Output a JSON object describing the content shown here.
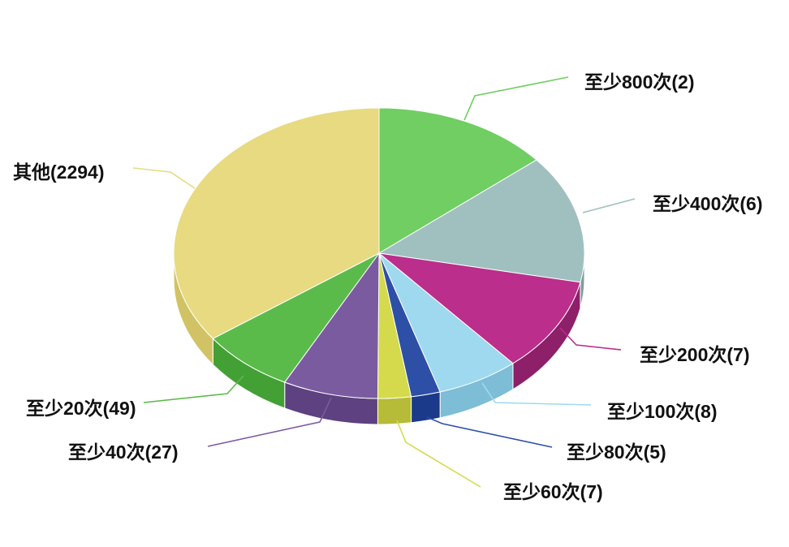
{
  "chart_data": {
    "type": "pie",
    "three_d": true,
    "title": "",
    "legend": "none",
    "slices": [
      {
        "label": "至少800次(2)",
        "display_value": 2,
        "color": "#70ce62",
        "side_color": "#4fa843"
      },
      {
        "label": "至少400次(6)",
        "display_value": 6,
        "color": "#9fc0bf",
        "side_color": "#7d9e9d"
      },
      {
        "label": "至少200次(7)",
        "display_value": 7,
        "color": "#bb2e8b",
        "side_color": "#8e1f69"
      },
      {
        "label": "至少100次(8)",
        "display_value": 8,
        "color": "#9fd9f0",
        "side_color": "#7dbdd6"
      },
      {
        "label": "至少80次(5)",
        "display_value": 5,
        "color": "#2e4fa6",
        "side_color": "#1c3a8a"
      },
      {
        "label": "至少60次(7)",
        "display_value": 7,
        "color": "#d4da4c",
        "side_color": "#b6bb38"
      },
      {
        "label": "至少40次(27)",
        "display_value": 27,
        "color": "#7b5ba0",
        "side_color": "#5e4180"
      },
      {
        "label": "至少20次(49)",
        "display_value": 49,
        "color": "#5bbb4a",
        "side_color": "#43a035"
      },
      {
        "label": "其他(2294)",
        "display_value": 2294,
        "color": "#e7da80",
        "side_color": "#d1c365"
      }
    ],
    "visual_share_percent": [
      13.9,
      14.3,
      10.5,
      6.5,
      2.3,
      2.6,
      7.5,
      7.4,
      35.0
    ]
  }
}
